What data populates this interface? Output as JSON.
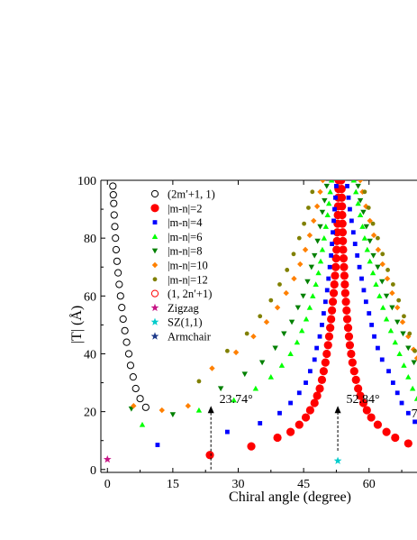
{
  "chart_data": {
    "type": "scatter",
    "xlabel": "Chiral angle (degree)",
    "ylabel": "|T| (Å)",
    "xlim": [
      -1.5,
      71
    ],
    "ylim": [
      -1,
      100
    ],
    "xticks": [
      0,
      15,
      30,
      45,
      60
    ],
    "yticks": [
      0,
      20,
      40,
      60,
      80,
      100
    ],
    "legend_position": "upper-left",
    "series": [
      {
        "name": "(2m′+1, 1)",
        "marker": "open-circle",
        "color": "#000000",
        "points": [
          [
            1.25,
            98
          ],
          [
            1.35,
            95
          ],
          [
            1.45,
            92
          ],
          [
            1.55,
            88
          ],
          [
            1.7,
            84
          ],
          [
            1.85,
            80
          ],
          [
            2.0,
            76
          ],
          [
            2.2,
            72
          ],
          [
            2.45,
            68
          ],
          [
            2.7,
            64
          ],
          [
            3.0,
            60
          ],
          [
            3.3,
            56
          ],
          [
            3.6,
            52
          ],
          [
            4.0,
            48
          ],
          [
            4.4,
            44
          ],
          [
            4.9,
            40
          ],
          [
            5.3,
            36
          ],
          [
            5.9,
            32
          ],
          [
            6.5,
            28
          ],
          [
            7.5,
            24.5
          ],
          [
            8.8,
            21.5
          ]
        ]
      },
      {
        "name": "|m-n|=2",
        "marker": "circle",
        "color": "#ff0000",
        "points": [
          [
            23.5,
            5
          ],
          [
            33,
            8
          ],
          [
            39,
            11
          ],
          [
            42,
            13
          ],
          [
            44,
            15.5
          ],
          [
            45.5,
            18
          ],
          [
            46.5,
            20.5
          ],
          [
            47.5,
            23
          ],
          [
            48.1,
            25.5
          ],
          [
            48.7,
            28
          ],
          [
            49.2,
            31
          ],
          [
            49.6,
            34
          ],
          [
            50,
            37
          ],
          [
            50.3,
            40
          ],
          [
            50.6,
            43
          ],
          [
            50.85,
            46
          ],
          [
            51.1,
            49
          ],
          [
            51.3,
            52
          ],
          [
            51.5,
            55
          ],
          [
            51.7,
            58
          ],
          [
            51.9,
            61
          ],
          [
            52.05,
            64
          ],
          [
            52.2,
            67
          ],
          [
            52.35,
            70
          ],
          [
            52.45,
            73
          ],
          [
            52.55,
            76
          ],
          [
            52.65,
            79
          ],
          [
            52.72,
            82
          ],
          [
            52.8,
            85
          ],
          [
            52.85,
            88
          ],
          [
            52.9,
            91
          ],
          [
            52.95,
            94
          ],
          [
            53,
            97
          ],
          [
            53.05,
            100
          ],
          [
            53.6,
            100
          ],
          [
            53.7,
            97
          ],
          [
            53.75,
            94
          ],
          [
            53.8,
            91
          ],
          [
            53.85,
            88
          ],
          [
            53.9,
            85
          ],
          [
            53.95,
            82
          ],
          [
            54,
            79
          ],
          [
            54.05,
            76
          ],
          [
            54.15,
            73
          ],
          [
            54.25,
            70
          ],
          [
            54.35,
            67
          ],
          [
            54.45,
            64
          ],
          [
            54.55,
            61
          ],
          [
            54.7,
            58
          ],
          [
            54.85,
            55
          ],
          [
            55,
            52
          ],
          [
            55.2,
            49
          ],
          [
            55.4,
            46
          ],
          [
            55.6,
            43
          ],
          [
            55.9,
            40
          ],
          [
            56.2,
            37
          ],
          [
            56.6,
            34
          ],
          [
            57,
            31
          ],
          [
            57.5,
            28
          ],
          [
            58,
            25.5
          ],
          [
            58.7,
            23
          ],
          [
            59.5,
            20.5
          ],
          [
            60.5,
            18
          ],
          [
            62,
            15.5
          ],
          [
            64,
            13
          ],
          [
            66,
            11
          ],
          [
            69,
            9
          ]
        ]
      },
      {
        "name": "|m-n|=4",
        "marker": "square",
        "color": "#0000ff",
        "points": [
          [
            11.5,
            8.5
          ],
          [
            27.5,
            13
          ],
          [
            35,
            16
          ],
          [
            39.5,
            19.5
          ],
          [
            42,
            23
          ],
          [
            44,
            26.5
          ],
          [
            45.5,
            30
          ],
          [
            46.5,
            34
          ],
          [
            47.5,
            38
          ],
          [
            48,
            42
          ],
          [
            48.7,
            46
          ],
          [
            49.2,
            50
          ],
          [
            49.6,
            54
          ],
          [
            50,
            58
          ],
          [
            50.4,
            62
          ],
          [
            50.7,
            66
          ],
          [
            51,
            70
          ],
          [
            51.3,
            74
          ],
          [
            51.5,
            78
          ],
          [
            51.7,
            82
          ],
          [
            51.9,
            86
          ],
          [
            52.1,
            90
          ],
          [
            52.3,
            94
          ],
          [
            52.5,
            98
          ],
          [
            55,
            98
          ],
          [
            55.3,
            94
          ],
          [
            55.6,
            90
          ],
          [
            56,
            86
          ],
          [
            56.4,
            82
          ],
          [
            56.8,
            78
          ],
          [
            57.3,
            74
          ],
          [
            57.8,
            70
          ],
          [
            58.3,
            66
          ],
          [
            58.8,
            62
          ],
          [
            59.3,
            58
          ],
          [
            60,
            54
          ],
          [
            60.6,
            50
          ],
          [
            61.2,
            46
          ],
          [
            62,
            42
          ],
          [
            63,
            38
          ],
          [
            64.5,
            34
          ],
          [
            65.5,
            30
          ],
          [
            66.5,
            26.5
          ],
          [
            67.5,
            23
          ],
          [
            69,
            19.5
          ],
          [
            70.5,
            16.5
          ]
        ]
      },
      {
        "name": "|m-n|=6",
        "marker": "triangle-up",
        "color": "#00ff00",
        "points": [
          [
            8,
            15.5
          ],
          [
            21,
            20.5
          ],
          [
            29,
            24
          ],
          [
            34,
            28
          ],
          [
            37.5,
            32
          ],
          [
            40,
            36
          ],
          [
            42,
            40
          ],
          [
            43.5,
            44
          ],
          [
            44.6,
            48
          ],
          [
            45.6,
            52
          ],
          [
            46.4,
            56
          ],
          [
            47.1,
            60
          ],
          [
            47.8,
            64
          ],
          [
            48.4,
            68
          ],
          [
            48.9,
            72
          ],
          [
            49.3,
            76
          ],
          [
            49.7,
            80
          ],
          [
            50.1,
            84
          ],
          [
            50.5,
            88
          ],
          [
            50.8,
            92
          ],
          [
            51.1,
            96
          ],
          [
            51.4,
            100
          ],
          [
            56.5,
            100
          ],
          [
            57,
            96
          ],
          [
            57.5,
            92
          ],
          [
            58,
            88
          ],
          [
            58.5,
            84
          ],
          [
            59,
            80
          ],
          [
            59.6,
            76
          ],
          [
            60.2,
            72
          ],
          [
            60.9,
            68
          ],
          [
            61.6,
            64
          ],
          [
            62.4,
            60
          ],
          [
            63.2,
            56
          ],
          [
            64,
            52
          ],
          [
            65,
            48
          ],
          [
            66,
            44
          ],
          [
            67,
            40
          ],
          [
            68,
            36
          ],
          [
            69,
            32
          ],
          [
            70,
            28
          ],
          [
            71,
            24.5
          ]
        ]
      },
      {
        "name": "|m-n|=8",
        "marker": "triangle-down",
        "color": "#008000",
        "points": [
          [
            5.5,
            21
          ],
          [
            15,
            19
          ],
          [
            26,
            28
          ],
          [
            31.5,
            33
          ],
          [
            35.5,
            37
          ],
          [
            38.5,
            42
          ],
          [
            40.5,
            47
          ],
          [
            42.3,
            51
          ],
          [
            43.7,
            56
          ],
          [
            44.9,
            60
          ],
          [
            45.9,
            65
          ],
          [
            46.8,
            70
          ],
          [
            47.5,
            74
          ],
          [
            48.2,
            79
          ],
          [
            48.8,
            84
          ],
          [
            49.3,
            89
          ],
          [
            49.8,
            93
          ],
          [
            50.3,
            98
          ],
          [
            57.5,
            98
          ],
          [
            58,
            93
          ],
          [
            58.7,
            89
          ],
          [
            59.4,
            84
          ],
          [
            60.2,
            79
          ],
          [
            61,
            74
          ],
          [
            62,
            70
          ],
          [
            63,
            65
          ],
          [
            64,
            60
          ],
          [
            65.3,
            56
          ],
          [
            66.5,
            51
          ],
          [
            67.8,
            47
          ],
          [
            69,
            42
          ],
          [
            70.3,
            37
          ]
        ]
      },
      {
        "name": "|m-n|=10",
        "marker": "diamond",
        "color": "#ff8000",
        "points": [
          [
            6,
            22
          ],
          [
            12.5,
            20.5
          ],
          [
            18.5,
            22
          ],
          [
            24,
            35
          ],
          [
            29.5,
            40.5
          ],
          [
            33.5,
            46
          ],
          [
            36.5,
            51
          ],
          [
            39,
            56
          ],
          [
            41,
            61
          ],
          [
            42.8,
            66
          ],
          [
            44.2,
            71
          ],
          [
            45.4,
            76
          ],
          [
            46.4,
            81
          ],
          [
            47.3,
            86
          ],
          [
            48.1,
            91
          ],
          [
            48.8,
            96
          ],
          [
            49.4,
            100
          ],
          [
            58,
            100
          ],
          [
            58.5,
            96
          ],
          [
            59.3,
            91
          ],
          [
            60.2,
            86
          ],
          [
            61.1,
            81
          ],
          [
            62.1,
            76
          ],
          [
            63.1,
            71
          ],
          [
            64.2,
            66
          ],
          [
            65.3,
            61
          ],
          [
            66.5,
            56
          ],
          [
            67.7,
            51
          ],
          [
            69,
            46
          ],
          [
            70.2,
            41.5
          ],
          [
            71,
            38.5
          ]
        ]
      },
      {
        "name": "|m-n|=12",
        "marker": "circle-small",
        "color": "#808000",
        "points": [
          [
            21,
            30.5
          ],
          [
            27.5,
            41
          ],
          [
            32,
            47
          ],
          [
            35,
            53
          ],
          [
            37.5,
            58.5
          ],
          [
            39.5,
            64
          ],
          [
            41.2,
            69
          ],
          [
            42.7,
            74.5
          ],
          [
            44,
            80
          ],
          [
            45.1,
            85
          ],
          [
            46.1,
            90.5
          ],
          [
            47,
            96
          ],
          [
            59,
            96
          ],
          [
            59.9,
            90.5
          ],
          [
            60.9,
            85
          ],
          [
            62,
            80
          ],
          [
            63.1,
            74.5
          ],
          [
            64.3,
            69
          ],
          [
            65.5,
            64
          ],
          [
            66.8,
            58.5
          ],
          [
            68,
            53
          ],
          [
            69.3,
            47
          ],
          [
            70.5,
            41
          ]
        ]
      },
      {
        "name": "(1, 2n′+1)",
        "marker": "open-circle",
        "color": "#ff0000",
        "points": []
      },
      {
        "name": "Zigzag",
        "marker": "star",
        "color": "#c71585",
        "points": [
          [
            0,
            3.5
          ]
        ]
      },
      {
        "name": "SZ(1,1)",
        "marker": "star",
        "color": "#00cccc",
        "points": [
          [
            52.84,
            3
          ]
        ]
      },
      {
        "name": "Armchair",
        "marker": "star",
        "color": "#1e3a8a",
        "points": []
      }
    ],
    "annotations": [
      {
        "label": "23.74°",
        "x": 23.74,
        "y_top": 22,
        "y_bottom": 0
      },
      {
        "label": "52.84°",
        "x": 52.84,
        "y_top": 22,
        "y_bottom": 6.5
      },
      {
        "label": "7",
        "x": 70.5,
        "y_top": null,
        "y_bottom": null
      }
    ]
  }
}
